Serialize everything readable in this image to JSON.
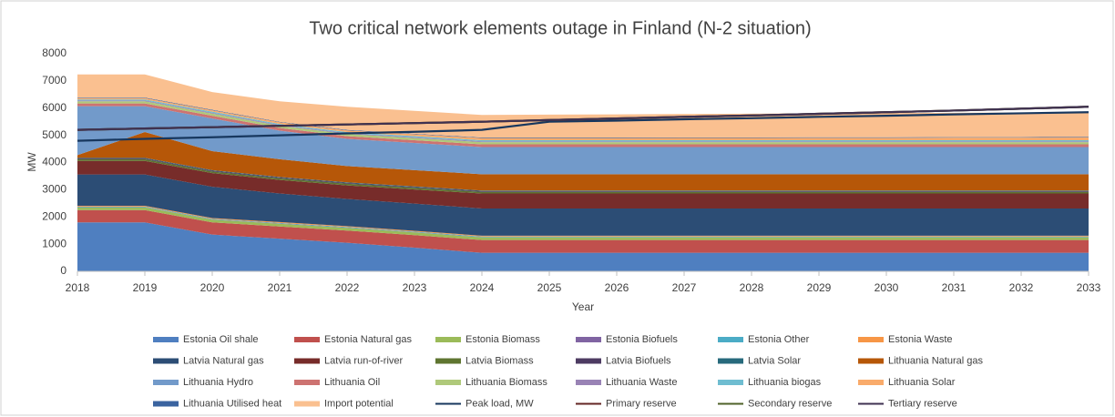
{
  "chart_data": {
    "type": "stacked_area",
    "title": "Two critical network elements outage in Finland (N-2 situation)",
    "x_label": "Year",
    "y_label": "MW",
    "x": [
      2018,
      2019,
      2020,
      2021,
      2022,
      2023,
      2024,
      2025,
      2026,
      2027,
      2028,
      2029,
      2030,
      2031,
      2032,
      2033
    ],
    "xlim": [
      2018,
      2033
    ],
    "xticks": [
      2018,
      2019,
      2020,
      2021,
      2022,
      2023,
      2024,
      2025,
      2026,
      2027,
      2028,
      2029,
      2030,
      2031,
      2032,
      2033
    ],
    "ylim": [
      0,
      8000
    ],
    "yticks": [
      0,
      1000,
      2000,
      3000,
      4000,
      5000,
      6000,
      7000,
      8000
    ],
    "series": [
      {
        "name": "Estonia Oil shale",
        "color": "#4f7fc0",
        "values": [
          1800,
          1800,
          1350,
          1200,
          1050,
          870,
          680,
          680,
          680,
          680,
          680,
          680,
          680,
          680,
          680,
          680
        ]
      },
      {
        "name": "Estonia Natural gas",
        "color": "#c0504d",
        "values": [
          450,
          450,
          450,
          450,
          450,
          460,
          470,
          470,
          470,
          470,
          470,
          470,
          470,
          470,
          470,
          470
        ]
      },
      {
        "name": "Estonia Biomass",
        "color": "#9bbb59",
        "values": [
          100,
          100,
          100,
          100,
          100,
          100,
          100,
          100,
          100,
          100,
          100,
          100,
          100,
          100,
          100,
          100
        ]
      },
      {
        "name": "Estonia Biofuels",
        "color": "#8064a2",
        "values": [
          10,
          10,
          10,
          10,
          10,
          10,
          10,
          10,
          10,
          10,
          10,
          10,
          10,
          10,
          10,
          10
        ]
      },
      {
        "name": "Estonia Other",
        "color": "#4bacc6",
        "values": [
          20,
          20,
          20,
          20,
          20,
          20,
          20,
          20,
          20,
          20,
          20,
          20,
          20,
          20,
          20,
          20
        ]
      },
      {
        "name": "Estonia Waste",
        "color": "#f79646",
        "values": [
          30,
          30,
          30,
          30,
          30,
          30,
          30,
          30,
          30,
          30,
          30,
          30,
          30,
          30,
          30,
          30
        ]
      },
      {
        "name": "Latvia Natural gas",
        "color": "#2c4d75",
        "values": [
          1150,
          1150,
          1150,
          1050,
          1000,
          1000,
          1000,
          1000,
          1000,
          1000,
          1000,
          1000,
          1000,
          1000,
          1000,
          1000
        ]
      },
      {
        "name": "Latvia run-of-river",
        "color": "#772c2a",
        "values": [
          500,
          500,
          500,
          500,
          500,
          520,
          550,
          550,
          550,
          550,
          550,
          550,
          550,
          550,
          550,
          550
        ]
      },
      {
        "name": "Latvia Biomass",
        "color": "#5f7530",
        "values": [
          60,
          60,
          60,
          60,
          60,
          60,
          60,
          60,
          60,
          60,
          60,
          60,
          60,
          60,
          60,
          60
        ]
      },
      {
        "name": "Latvia Biofuels",
        "color": "#4d3b62",
        "values": [
          30,
          30,
          30,
          30,
          30,
          30,
          30,
          30,
          30,
          30,
          30,
          30,
          30,
          30,
          30,
          30
        ]
      },
      {
        "name": "Latvia Solar",
        "color": "#276a7c",
        "values": [
          20,
          20,
          20,
          20,
          20,
          20,
          20,
          20,
          20,
          20,
          20,
          20,
          20,
          20,
          20,
          20
        ]
      },
      {
        "name": "Lithuania Natural gas",
        "color": "#b65708",
        "values": [
          100,
          950,
          700,
          650,
          600,
          600,
          600,
          600,
          600,
          600,
          600,
          600,
          600,
          600,
          600,
          600
        ]
      },
      {
        "name": "Lithuania Hydro",
        "color": "#729aca",
        "values": [
          1800,
          950,
          1200,
          1050,
          1000,
          1000,
          1000,
          1000,
          1000,
          1000,
          1000,
          1000,
          1000,
          1000,
          1000,
          1000
        ]
      },
      {
        "name": "Lithuania Oil",
        "color": "#cd7371",
        "values": [
          100,
          100,
          100,
          100,
          100,
          100,
          100,
          100,
          100,
          100,
          100,
          100,
          100,
          100,
          100,
          100
        ]
      },
      {
        "name": "Lithuania Biomass",
        "color": "#afc97a",
        "values": [
          80,
          80,
          80,
          80,
          80,
          80,
          80,
          80,
          80,
          80,
          80,
          80,
          80,
          80,
          80,
          80
        ]
      },
      {
        "name": "Lithuania Waste",
        "color": "#9983b5",
        "values": [
          30,
          30,
          30,
          30,
          30,
          30,
          30,
          30,
          30,
          30,
          30,
          30,
          30,
          30,
          30,
          30
        ]
      },
      {
        "name": "Lithuania biogas",
        "color": "#6fbdd1",
        "values": [
          40,
          40,
          40,
          40,
          40,
          40,
          40,
          40,
          40,
          40,
          40,
          40,
          40,
          40,
          40,
          40
        ]
      },
      {
        "name": "Lithuania Solar",
        "color": "#f9ab6b",
        "values": [
          50,
          50,
          50,
          60,
          60,
          70,
          80,
          80,
          80,
          85,
          85,
          90,
          90,
          95,
          95,
          100
        ]
      },
      {
        "name": "Lithuania Utilised heat",
        "color": "#3b64a0",
        "values": [
          20,
          20,
          20,
          20,
          20,
          20,
          20,
          20,
          20,
          20,
          20,
          20,
          20,
          20,
          20,
          20
        ]
      },
      {
        "name": "Import potential",
        "color": "#fac090",
        "values": [
          850,
          850,
          650,
          750,
          850,
          840,
          830,
          840,
          850,
          860,
          870,
          880,
          890,
          895,
          900,
          910
        ]
      }
    ],
    "lines": [
      {
        "name": "Peak load, MW",
        "color": "#17375e",
        "values": [
          4800,
          4870,
          4930,
          5000,
          5070,
          5130,
          5200,
          5500,
          5540,
          5590,
          5630,
          5680,
          5720,
          5770,
          5810,
          5850
        ]
      },
      {
        "name": "Primary reserve",
        "color": "#632523",
        "values": [
          5200,
          5250,
          5300,
          5350,
          5400,
          5450,
          5500,
          5560,
          5620,
          5680,
          5730,
          5790,
          5850,
          5910,
          5980,
          6050
        ]
      },
      {
        "name": "Secondary reserve",
        "color": "#4f6228",
        "values": [
          5200,
          5250,
          5300,
          5350,
          5400,
          5450,
          5500,
          5560,
          5620,
          5680,
          5730,
          5790,
          5850,
          5910,
          5980,
          6050
        ]
      },
      {
        "name": "Tertiary reserve",
        "color": "#3f3151",
        "values": [
          5200,
          5250,
          5300,
          5350,
          5400,
          5450,
          5500,
          5560,
          5620,
          5680,
          5730,
          5790,
          5850,
          5910,
          5980,
          6050
        ]
      }
    ]
  }
}
